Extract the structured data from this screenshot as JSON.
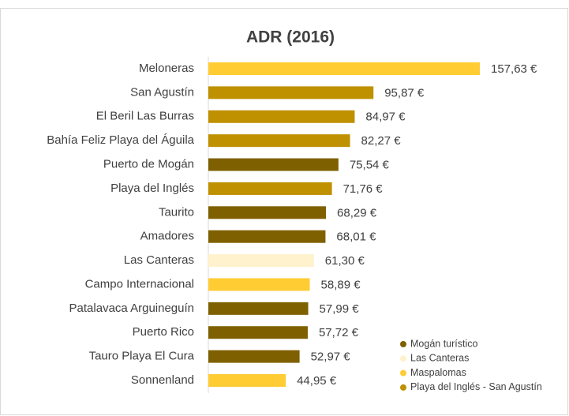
{
  "chart_data": {
    "type": "bar",
    "orientation": "horizontal",
    "title": "ADR (2016)",
    "categories": [
      "Meloneras",
      "San Agustín",
      "El Beril Las Burras",
      "Bahía Feliz Playa del Águila",
      "Puerto de Mogán",
      "Playa del Inglés",
      "Taurito",
      "Amadores",
      "Las Canteras",
      "Campo Internacional",
      "Patalavaca Arguineguín",
      "Puerto Rico",
      "Tauro Playa El Cura",
      "Sonnenland"
    ],
    "values": [
      157.63,
      95.87,
      84.97,
      82.27,
      75.54,
      71.76,
      68.29,
      68.01,
      61.3,
      58.89,
      57.99,
      57.72,
      52.97,
      44.95
    ],
    "value_labels": [
      "157,63 €",
      "95,87 €",
      "84,97 €",
      "82,27 €",
      "75,54 €",
      "71,76 €",
      "68,29 €",
      "68,01 €",
      "61,30 €",
      "58,89 €",
      "57,99 €",
      "57,72 €",
      "52,97 €",
      "44,95 €"
    ],
    "colors": [
      "#ffcc33",
      "#bf9000",
      "#bf9000",
      "#bf9000",
      "#7f6000",
      "#bf9000",
      "#7f6000",
      "#7f6000",
      "#fff2cc",
      "#ffcc33",
      "#7f6000",
      "#7f6000",
      "#7f6000",
      "#ffcc33"
    ],
    "legend": [
      {
        "name": "Mogán turístico",
        "color": "#7f6000"
      },
      {
        "name": "Las Canteras",
        "color": "#fff2cc"
      },
      {
        "name": "Maspalomas",
        "color": "#ffcc33"
      },
      {
        "name": "Playa del Inglés - San Agustín",
        "color": "#bf9000"
      }
    ],
    "legend_position": "lower right"
  }
}
